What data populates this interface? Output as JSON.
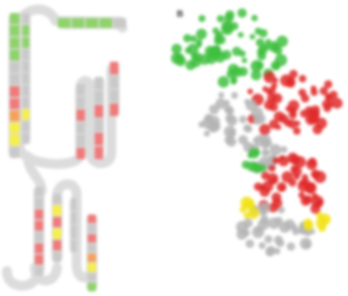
{
  "figure": {
    "panel_b_label": "B",
    "domain_label_1": "",
    "domain_label_2": ""
  },
  "colors": {
    "tube": "#dcdcdc",
    "tube_stroke": "#c8c8c8",
    "green": "#8ed36a",
    "red": "#f07a7a",
    "orange": "#f5a15a",
    "yellow": "#f6ef4a",
    "grey_residue": "#c9c9c9",
    "struct_green": "#3fbf3f",
    "struct_red": "#e02a2a",
    "struct_grey": "#b5b5b5",
    "struct_yellow": "#f2e31a"
  }
}
